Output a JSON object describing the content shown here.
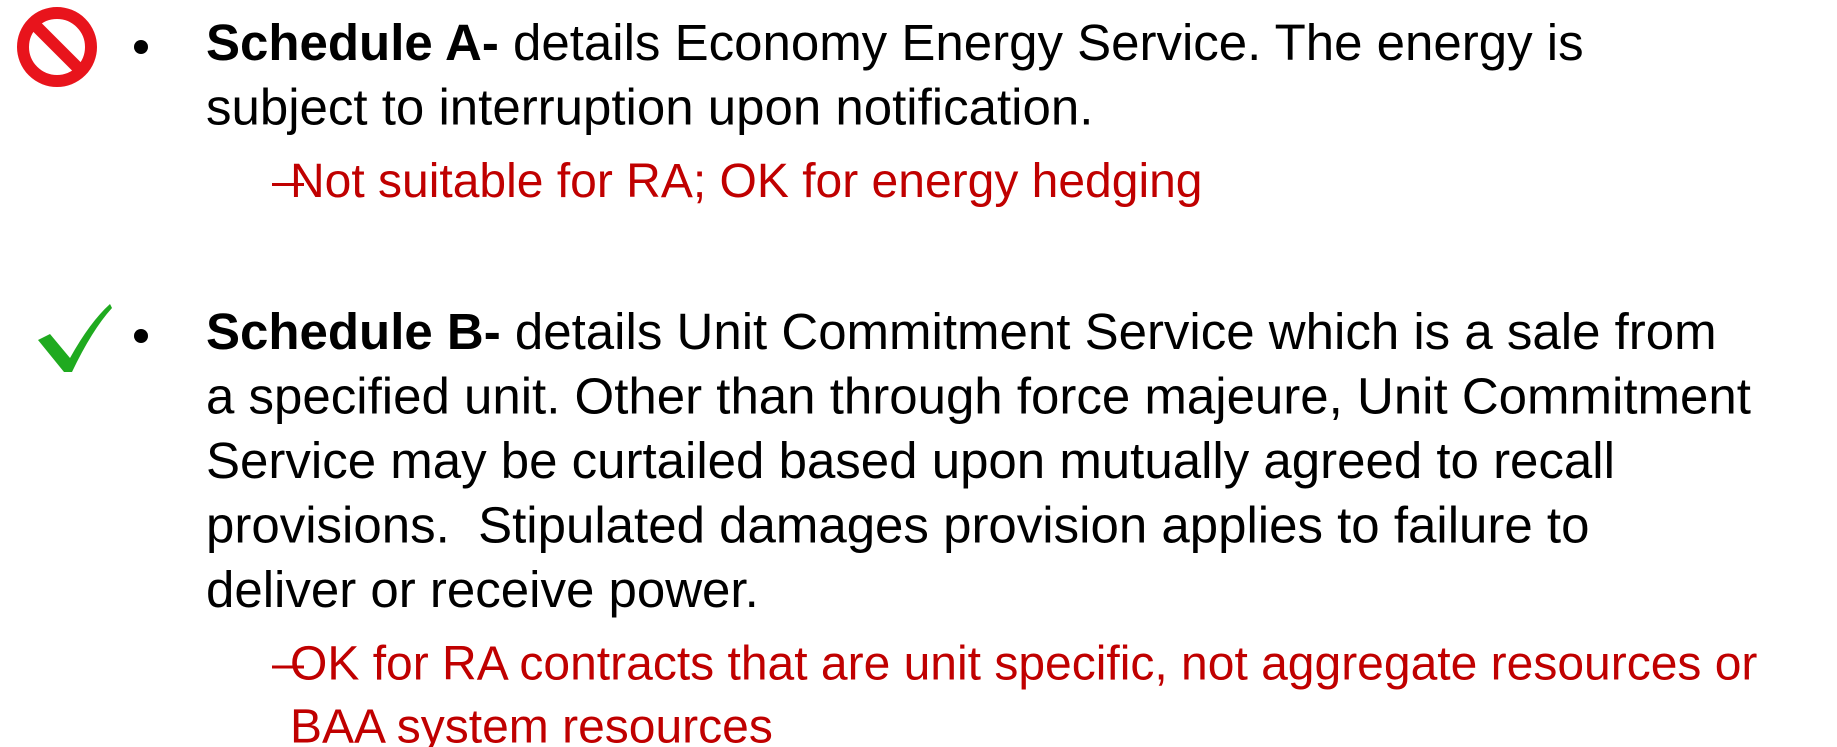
{
  "items": [
    {
      "label": "Schedule A-",
      "lines": [
        " details Economy Energy Service. The energy is",
        "subject to interruption upon notification."
      ],
      "sub": [
        "Not suitable for RA; OK for energy hedging"
      ]
    },
    {
      "label": "Schedule B-",
      "lines": [
        " details Unit Commitment Service which is a sale from",
        "a specified unit. Other than through force majeure, Unit Commitment",
        "Service may be curtailed based upon mutually agreed to recall",
        "provisions.  Stipulated damages provision applies to failure to",
        "deliver or receive power."
      ],
      "sub": [
        "OK for RA contracts that are unit specific, not aggregate resources or",
        "BAA system resources"
      ]
    }
  ]
}
